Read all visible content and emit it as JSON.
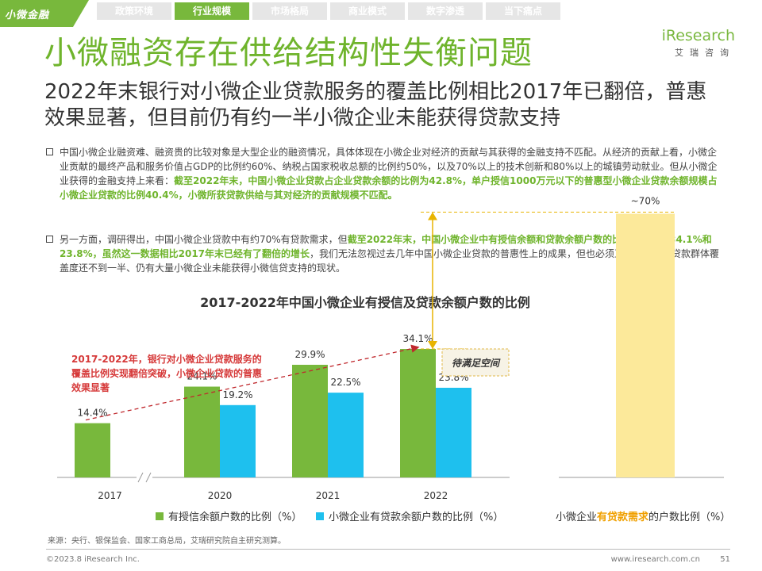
{
  "corner_badge": "小微金融",
  "nav": {
    "tabs": [
      "政策环境",
      "行业规模",
      "市场格局",
      "商业模式",
      "数字渗透",
      "当下痛点"
    ],
    "active_index": 1
  },
  "logo": {
    "main": "iResearch",
    "sub": "艾瑞咨询"
  },
  "title": "小微融资存在供给结构性失衡问题",
  "subtitle": "2022年末银行对小微企业贷款服务的覆盖比例相比2017年已翻倍，普惠效果显著，但目前仍有约一半小微企业未能获得贷款支持",
  "paragraph1": {
    "normal": "中国小微企业融资难、融资贵的比较对象是大型企业的融资情况，具体体现在小微企业对经济的贡献与其获得的金融支持不匹配。从经济的贡献上看，小微企业贡献的最终产品和服务价值占GDP的比例约60%、纳税占国家税收总额的比例约50%，以及70%以上的技术创新和80%以上的城镇劳动就业。但从小微企业获得的金融支持上来看：",
    "highlight": "截至2022年末，中国小微企业贷款占企业贷款余额的比例为42.8%，单户授信1000万元以下的普惠型小微企业贷款余额规模占小微企业贷款的比例40.4%，小微所获贷款供给与其对经济的贡献规模不匹配。"
  },
  "paragraph2": {
    "normal_before": "另一方面，调研得出，中国小微企业贷款中有约70%有贷款需求，但",
    "highlight": "截至2022年末，中国小微企业中有授信余额和贷款余额户数的比例分别仅为34.1%和23.8%，虽然这一数据相比2017年末已经有了翻倍的增长",
    "normal_after": "，我们无法忽视过去几年中国小微企业贷款的普惠性上的成果，但也必须正视小微企业贷款群体覆盖度还不到一半、仍有大量小微企业未能获得小微信贷支持的现状。"
  },
  "chart_data": [
    {
      "type": "bar",
      "title": "2017-2022年中国小微企业有授信及贷款余额户数的比例",
      "categories": [
        "2017",
        "2020",
        "2021",
        "2022"
      ],
      "series": [
        {
          "name": "有授信余额户数的比例（%）",
          "color": "#78b83c",
          "values": [
            14.4,
            24.1,
            29.9,
            34.1
          ],
          "labels": [
            "14.4%",
            "24.1%",
            "29.9%",
            "34.1%"
          ]
        },
        {
          "name": "小微企业有贷款余额户数的比例（%）",
          "color": "#1ec0ee",
          "values": [
            null,
            19.2,
            22.5,
            23.8
          ],
          "labels": [
            "",
            "19.2%",
            "22.5%",
            "23.8%"
          ]
        }
      ],
      "ylim": [
        0,
        75
      ],
      "axis_break_between": [
        "2017",
        "2020"
      ],
      "annotation": "2017-2022年，银行对小微企业贷款服务的覆盖比例实现翻倍突破，小微企业贷款的普惠效果显著",
      "gap_label": "待满足空间"
    },
    {
      "type": "bar",
      "categories": [
        ""
      ],
      "values": [
        70
      ],
      "value_label": "~70%",
      "color": "#fce99a",
      "legend_prefix": "小微企业",
      "legend_highlight": "有贷款需求",
      "legend_suffix": "的户数比例（%）"
    }
  ],
  "source": "来源：央行、银保监会、国家工商总局，艾瑞研究院自主研究测算。",
  "footer": {
    "copyright": "©2023.8 iResearch Inc.",
    "url": "www.iresearch.com.cn",
    "page": "51"
  }
}
